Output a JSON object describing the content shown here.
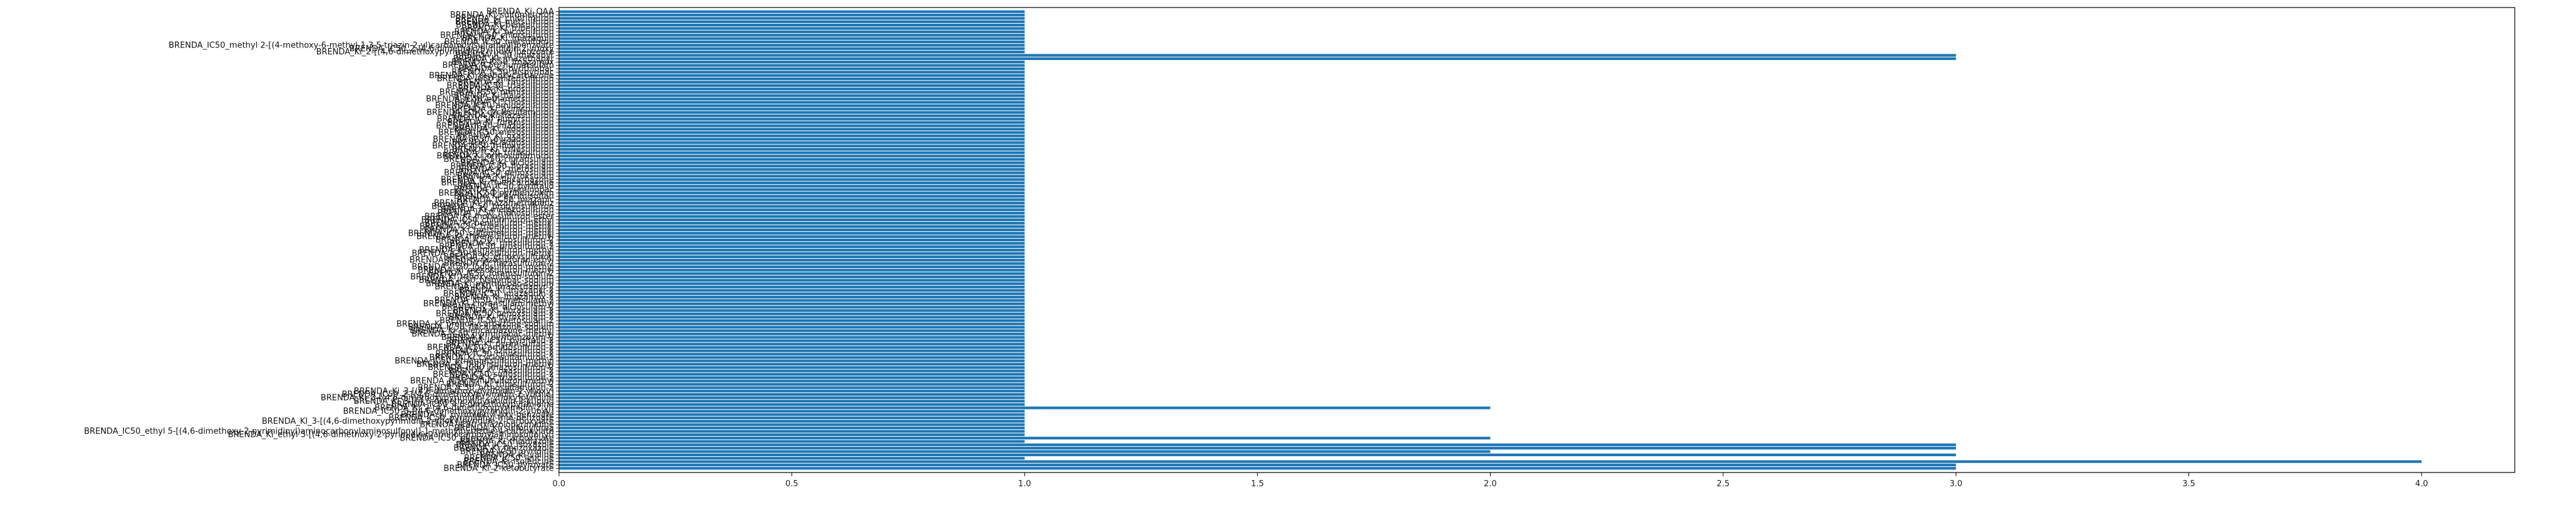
{
  "chart_data": {
    "type": "bar",
    "orientation": "horizontal",
    "title": "",
    "xlabel": "",
    "ylabel": "",
    "xlim": [
      0,
      4.2
    ],
    "xticks": [
      0.0,
      0.5,
      1.0,
      1.5,
      2.0,
      2.5,
      3.0,
      3.5,
      4.0
    ],
    "xtick_labels": [
      "0.0",
      "0.5",
      "1.0",
      "1.5",
      "2.0",
      "2.5",
      "3.0",
      "3.5",
      "4.0"
    ],
    "grid": false,
    "legend": "none",
    "bar_color": "#1f77b4",
    "categories_from_top": [
      "BRENDA_Ki_QAA",
      "BRENDA_Ki_sulfometuron",
      "BRENDA_Ki_chlorimuron",
      "BRENDA_Ki_metsulfuron",
      "BRENDA_Ki_bensulfuron",
      "BRENDA_Ki_tribenuron",
      "BRENDA_Ki_nicosulfuron",
      "BRENDA_IC50_chlorsulfuron",
      "BRENDA_Ki_imazaquin",
      "BRENDA_IC50_metsulfuron",
      "BRENDA_IC50_methyl 2-[(4-methoxy-6-methyl-1,3,5-triazin-2-yl)carbamoylsulfamoyl]benzoate",
      "BRENDA_IC50_2-(4,6-dimethoxypyrimidin-2-yl)oxy",
      "BRENDA_Ki_2-[(4,6-dimethoxypyrimidin-2-yl)oxy]benzoate",
      "BRENDA_IC50_imazapyr",
      "BRENDA_Ki_imazethapyr",
      "BRENDA_IC50_imazamox",
      "BRENDA_IC50_flumetsulam",
      "BRENDA_Ki_pyrithiobac",
      "BRENDA_IC50_bispyribac",
      "BRENDA_Ki_propoxycarbazone",
      "BRENDA_IC50_thifensulfuron",
      "BRENDA_Ki_rimsulfuron",
      "BRENDA_IC50_triasulfuron",
      "BRENDA_Ki_prosulfuron",
      "BRENDA_IC50_primisulfuron",
      "BRENDA_Ki_halosulfuron",
      "BRENDA_IC50_ethametsulfuron",
      "BRENDA_Ki_cinosulfuron",
      "BRENDA_IC50_amidosulfuron",
      "BRENDA_Ki_azimsulfuron",
      "BRENDA_IC50_cyclosulfamuron",
      "BRENDA_Ki_flazasulfuron",
      "BRENDA_IC50_flupyrsulfuron",
      "BRENDA_Ki_foramsulfuron",
      "BRENDA_IC50_imazosulfuron",
      "BRENDA_Ki_iodosulfuron",
      "BRENDA_IC50_mesosulfuron",
      "BRENDA_Ki_oxasulfuron",
      "BRENDA_IC50_pyrazosulfuron",
      "BRENDA_Ki_sulfosulfuron",
      "BRENDA_IC50_trifloxysulfuron",
      "BRENDA_Ki_triflusulfuron",
      "BRENDA_IC50_tritosulfuron",
      "BRENDA_Ki_orthosulfamuron",
      "BRENDA_IC50_cloransulam",
      "BRENDA_Ki_diclosulam",
      "BRENDA_IC50_florasulam",
      "BRENDA_Ki_metosulam",
      "BRENDA_IC50_penoxsulam",
      "BRENDA_Ki_pyroxsulam",
      "BRENDA_IC50_flucarbazone",
      "BRENDA_Ki_thiencarbazone",
      "BRENDA_IC50_pyriftalid",
      "BRENDA_Ki_pyriminobac",
      "BRENDA_IC50_pyribenzoxim",
      "BRENDA_Ki_pyrimisulfan",
      "BRENDA_IC50_imazapic",
      "BRENDA_Ki_imazamethabenz",
      "BRENDA_IC50_propyrisulfuron",
      "BRENDA_Ki_metazosulfuron",
      "BRENDA_IC50_monosulfuron",
      "BRENDA_Ki_monosulfuron-ester",
      "BRENDA_IC50_chlorimuron-ethyl",
      "BRENDA_Ki_bensulfuron-methyl",
      "BRENDA_IC50_tribenuron-methyl",
      "BRENDA_Ki_metsulfuron-methyl",
      "BRENDA_IC50_sulfometuron-methyl",
      "BRENDA_Ki_thifensulfuron-methyl",
      "BRENDA_IC50_nicosulfuron-2",
      "BRENDA_Ki_rimsulfuron-2",
      "BRENDA_IC50_prosulfuron-2",
      "BRENDA_Ki_primisulfuron-methyl",
      "BRENDA_IC50_halosulfuron-methyl",
      "BRENDA_Ki_ethoxysulfuron",
      "BRENDA_IC50_pyrazosulfuron-ethyl",
      "BRENDA_Ki_flazasulfuron-2",
      "BRENDA_IC50_iodosulfuron-methyl",
      "BRENDA_Ki_mesosulfuron-methyl",
      "BRENDA_IC50_foramsulfuron-2",
      "BRENDA_Ki_trifloxysulfuron-sodium",
      "BRENDA_IC50_bispyribac-sodium",
      "BRENDA_Ki_pyrithiobac-sodium",
      "BRENDA_IC50_imazethapyr-2",
      "BRENDA_Ki_imazapyr-2",
      "BRENDA_IC50_imazaquin-2",
      "BRENDA_Ki_imazamox-2",
      "BRENDA_IC50_flumetsulam-2",
      "BRENDA_Ki_cloransulam-methyl",
      "BRENDA_IC50_diclosulam-2",
      "BRENDA_Ki_florasulam-2",
      "BRENDA_IC50_penoxsulam-2",
      "BRENDA_Ki_pyroxsulam-2",
      "BRENDA_IC50_metosulam-2",
      "BRENDA_Ki_propoxycarbazone-sodium",
      "BRENDA_IC50_flucarbazone-sodium",
      "BRENDA_Ki_thiencarbazone-methyl",
      "BRENDA_IC50_pyriminobac-methyl",
      "BRENDA_Ki_pyribenzoxim-2",
      "BRENDA_IC50_pyriftalid-2",
      "BRENDA_Ki_pyrimisulfan-2",
      "BRENDA_IC50_amidosulfuron-2",
      "BRENDA_Ki_azimsulfuron-2",
      "BRENDA_IC50_cinosulfuron-2",
      "BRENDA_Ki_cyclosulfamuron-2",
      "BRENDA_IC50_ethametsulfuron-methyl",
      "BRENDA_Ki_flupyrsulfuron-methyl",
      "BRENDA_IC50_imazosulfuron-2",
      "BRENDA_Ki_oxasulfuron-2",
      "BRENDA_IC50_sulfosulfuron-2",
      "BRENDA_Ki_triasulfuron-2",
      "BRENDA_IC50_triflusulfuron-methyl",
      "BRENDA_Ki_tritosulfuron-2",
      "BRENDA_IC50_orthosulfamuron-2",
      "BRENDA_Ki_3-[(4,6-dimethoxypyrimidin-2-yl)oxy]",
      "BRENDA_IC50_2-[(4,6-dimethoxypyrimidin-2-yl)thio]",
      "BRENDA_Ki_3-[(4,6-dimethoxypyrimidin-2-yl)oxy]pyridine",
      "BRENDA_KI_3-[(4,6-dimethoxypyrimidin-2-yl)oxy]",
      "BRENDA_IC50_4,6-dimethoxypyrimidine",
      "BRENDA_Ki_2-(4,6-dimethoxypyrimidin-2-yl)",
      "BRENDA_IC50_5-[(4,6-dimethoxypyrimidin-2-yl)oxy]",
      "BRENDA_Ki_pyrimidinyl-oxy-benzoate",
      "BRENDA_IC50_pyrimidinyl-thio-benzoate",
      "BRENDA_KI_3-[(4,6-dimethoxypyrimidin-2-yl)oxy]pyridine-2-carboxylate",
      "BRENDA_IC50_triazolopyrimidine",
      "BRENDA_Ki_sulfonylurea",
      "BRENDA_IC50_ethyl 5-[(4,6-dimethoxy-2-pyrimidinyl)aminocarbonylaminosulfonyl]-1-methylpyrazole-4-carboxylate",
      "BRENDA_Ki_ethyl 5-[(4,6-dimethoxy-2-pyrimidinyl)aminocarbonylaminosulfonyl]",
      "BRENDA_IC50_pyrazole-4-carboxylate",
      "BRENDA_Ki_thiadiazole",
      "BRENDA_IC50_isoxazole",
      "BRENDA_Ki_benzoxazole",
      "BRENDA_IC50_pyridine",
      "BRENDA_Ki_valine",
      "BRENDA_IC50_leucine",
      "BRENDA_Ki_isoleucine",
      "BRENDA_IC50_pyruvate",
      "BRENDA_Ki_2-ketobutyrate"
    ],
    "values_from_top": [
      1,
      1,
      1,
      1,
      1,
      1,
      1,
      1,
      1,
      1,
      1,
      1,
      1,
      3,
      3,
      1,
      1,
      1,
      1,
      1,
      1,
      1,
      1,
      1,
      1,
      1,
      1,
      1,
      1,
      1,
      1,
      1,
      1,
      1,
      1,
      1,
      1,
      1,
      1,
      1,
      1,
      1,
      1,
      1,
      1,
      1,
      1,
      1,
      1,
      1,
      1,
      1,
      1,
      1,
      1,
      1,
      1,
      1,
      1,
      1,
      1,
      1,
      1,
      1,
      1,
      1,
      1,
      1,
      1,
      1,
      1,
      1,
      1,
      1,
      1,
      1,
      1,
      1,
      1,
      1,
      1,
      1,
      1,
      1,
      1,
      1,
      1,
      1,
      1,
      1,
      1,
      1,
      1,
      1,
      1,
      1,
      1,
      1,
      1,
      1,
      1,
      1,
      1,
      1,
      1,
      1,
      1,
      1,
      1,
      1,
      1,
      1,
      1,
      1,
      1,
      1,
      1,
      1,
      2,
      1,
      1,
      1,
      1,
      1,
      1,
      1,
      1,
      2,
      1,
      3,
      3,
      2,
      3,
      1,
      4,
      3,
      3,
      3,
      3
    ]
  }
}
